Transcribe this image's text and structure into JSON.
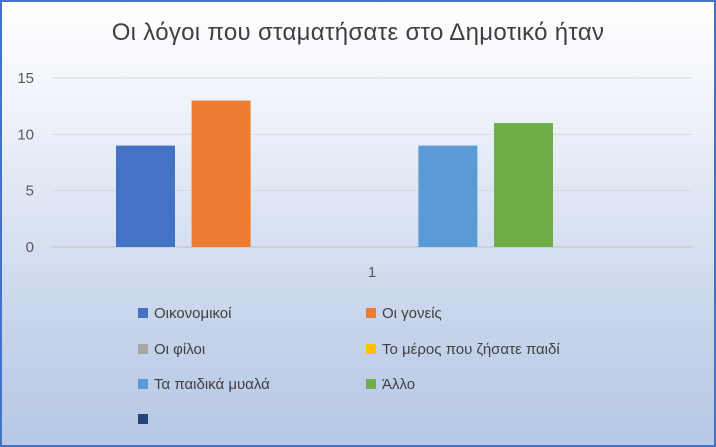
{
  "chart_data": {
    "type": "bar",
    "title": "Οι λόγοι που σταματήσατε  στο Δημοτικό ήταν",
    "categories": [
      "1"
    ],
    "ylim": [
      0,
      15
    ],
    "yticks": [
      0,
      5,
      10,
      15
    ],
    "grid": true,
    "legend_position": "bottom",
    "series": [
      {
        "name": "Οικονομικοί",
        "values": [
          9
        ],
        "color": "#4472c4"
      },
      {
        "name": "Οι γονείς",
        "values": [
          13
        ],
        "color": "#ed7d31"
      },
      {
        "name": "Οι φίλοι",
        "values": [
          0
        ],
        "color": "#a5a5a5"
      },
      {
        "name": "Το μέρος που ζήσατε παιδί",
        "values": [
          0
        ],
        "color": "#ffc000"
      },
      {
        "name": "Τα παιδικά μυαλά",
        "values": [
          9
        ],
        "color": "#5b9bd5"
      },
      {
        "name": "Άλλο",
        "values": [
          11
        ],
        "color": "#70ad47"
      },
      {
        "name": "",
        "values": [
          0
        ],
        "color": "#264478"
      }
    ]
  }
}
